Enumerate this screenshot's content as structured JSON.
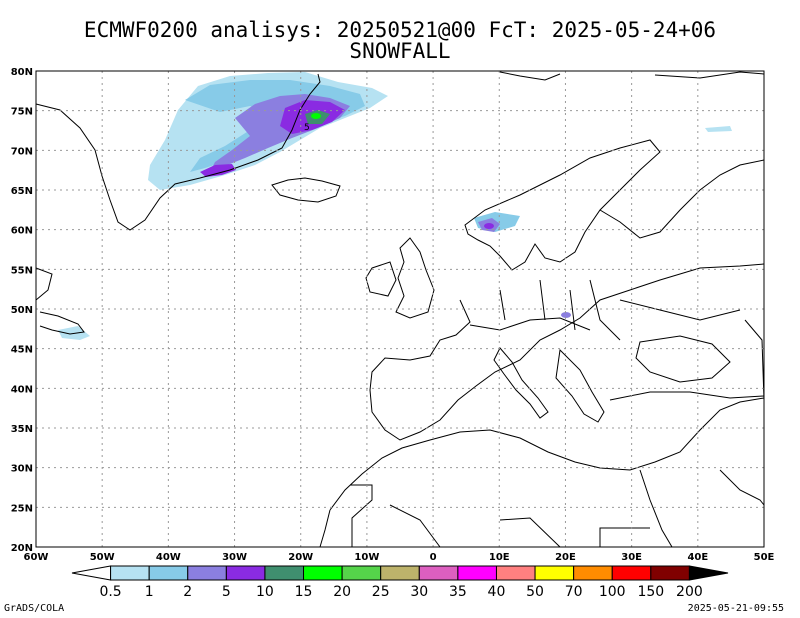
{
  "title": {
    "line1": "ECMWF0200 analisys: 20250521@00 FcT: 2025-05-24+06",
    "line2": "SNOWFALL"
  },
  "map": {
    "projection": "lat-lon",
    "lon_range": [
      -60,
      50
    ],
    "lat_range": [
      20,
      80
    ],
    "lon_ticks": [
      "60W",
      "50W",
      "40W",
      "30W",
      "20W",
      "10W",
      "0",
      "10E",
      "20E",
      "30E",
      "40E",
      "50E"
    ],
    "lat_ticks": [
      "20N",
      "25N",
      "30N",
      "35N",
      "40N",
      "45N",
      "50N",
      "55N",
      "60N",
      "65N",
      "70N",
      "75N",
      "80N"
    ],
    "grid": true,
    "contour_label": "5"
  },
  "colorbar": {
    "levels": [
      "0.5",
      "1",
      "2",
      "5",
      "10",
      "15",
      "20",
      "25",
      "30",
      "35",
      "40",
      "50",
      "70",
      "100",
      "150",
      "200"
    ],
    "colors": [
      "#ffffff",
      "#b6e2f2",
      "#87cbe8",
      "#8b7fe0",
      "#8a2be2",
      "#3f8f6f",
      "#00ff00",
      "#55d44a",
      "#bdb36b",
      "#dd5fc0",
      "#ff00ff",
      "#ff8080",
      "#ffff00",
      "#ff8c00",
      "#ff0000",
      "#800000",
      "#000000"
    ]
  },
  "footer": {
    "left": "GrADS/COLA",
    "right": "2025-05-21-09:55"
  }
}
